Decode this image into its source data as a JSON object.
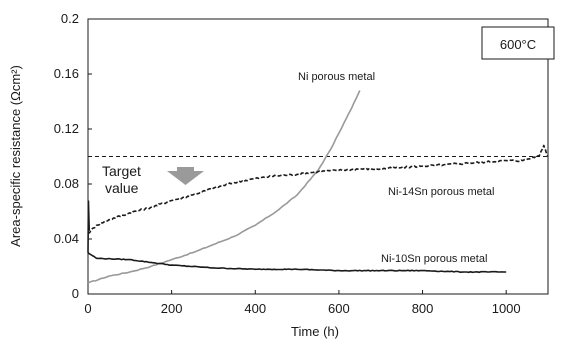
{
  "chart_data": {
    "type": "line",
    "xlabel": "Time (h)",
    "ylabel": "Area-specific resistance (Ωcm²)",
    "xlim": [
      0,
      1100
    ],
    "ylim": [
      0,
      0.2
    ],
    "x_ticks": [
      "0",
      "200",
      "400",
      "600",
      "800",
      "1000"
    ],
    "y_ticks": [
      "0",
      "0.04",
      "0.08",
      "0.12",
      "0.16",
      "0.2"
    ],
    "temperature_label": "600°C",
    "target": {
      "label_line1": "Target",
      "label_line2": "value",
      "value": 0.1
    },
    "series": [
      {
        "name": "Ni porous metal",
        "color": "#999999",
        "style": "solid",
        "points": [
          [
            0,
            0.008
          ],
          [
            50,
            0.013
          ],
          [
            100,
            0.016
          ],
          [
            150,
            0.02
          ],
          [
            200,
            0.025
          ],
          [
            250,
            0.03
          ],
          [
            300,
            0.036
          ],
          [
            350,
            0.042
          ],
          [
            400,
            0.05
          ],
          [
            450,
            0.06
          ],
          [
            500,
            0.072
          ],
          [
            550,
            0.09
          ],
          [
            580,
            0.105
          ],
          [
            600,
            0.117
          ],
          [
            630,
            0.135
          ],
          [
            650,
            0.148
          ]
        ]
      },
      {
        "name": "Ni-14Sn porous metal",
        "color": "#1a1a1a",
        "style": "dashed",
        "points": [
          [
            0,
            0.044
          ],
          [
            20,
            0.05
          ],
          [
            50,
            0.054
          ],
          [
            100,
            0.059
          ],
          [
            150,
            0.063
          ],
          [
            200,
            0.068
          ],
          [
            250,
            0.072
          ],
          [
            300,
            0.077
          ],
          [
            350,
            0.081
          ],
          [
            400,
            0.084
          ],
          [
            450,
            0.086
          ],
          [
            500,
            0.087
          ],
          [
            550,
            0.089
          ],
          [
            600,
            0.09
          ],
          [
            650,
            0.091
          ],
          [
            700,
            0.091
          ],
          [
            750,
            0.092
          ],
          [
            800,
            0.093
          ],
          [
            850,
            0.094
          ],
          [
            900,
            0.095
          ],
          [
            950,
            0.096
          ],
          [
            1000,
            0.097
          ],
          [
            1040,
            0.097
          ],
          [
            1060,
            0.099
          ],
          [
            1080,
            0.101
          ],
          [
            1090,
            0.108
          ],
          [
            1100,
            0.1
          ]
        ]
      },
      {
        "name": "Ni-10Sn porous metal",
        "color": "#1a1a1a",
        "style": "solid",
        "points": [
          [
            0,
            0.03
          ],
          [
            10,
            0.028
          ],
          [
            20,
            0.026
          ],
          [
            100,
            0.025
          ],
          [
            150,
            0.023
          ],
          [
            200,
            0.021
          ],
          [
            300,
            0.019
          ],
          [
            400,
            0.018
          ],
          [
            500,
            0.018
          ],
          [
            600,
            0.017
          ],
          [
            700,
            0.017
          ],
          [
            800,
            0.017
          ],
          [
            900,
            0.016
          ],
          [
            1000,
            0.016
          ]
        ]
      }
    ]
  }
}
